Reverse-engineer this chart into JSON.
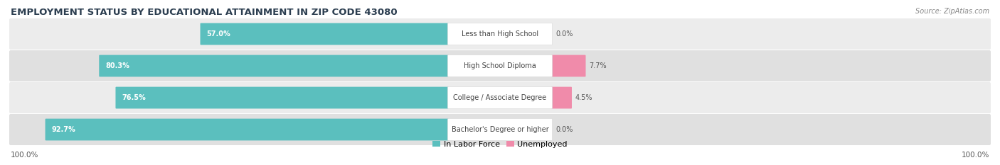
{
  "title": "EMPLOYMENT STATUS BY EDUCATIONAL ATTAINMENT IN ZIP CODE 43080",
  "source": "Source: ZipAtlas.com",
  "categories": [
    "Less than High School",
    "High School Diploma",
    "College / Associate Degree",
    "Bachelor's Degree or higher"
  ],
  "labor_force": [
    57.0,
    80.3,
    76.5,
    92.7
  ],
  "unemployed": [
    0.0,
    7.7,
    4.5,
    0.0
  ],
  "labor_force_color": "#5BBFBE",
  "unemployed_color": "#F08BAA",
  "row_bg_light": "#ECECEC",
  "row_bg_dark": "#E0E0E0",
  "max_value": 100.0,
  "left_label": "100.0%",
  "right_label": "100.0%",
  "legend_labor": "In Labor Force",
  "legend_unemployed": "Unemployed",
  "title_fontsize": 9.5,
  "source_fontsize": 7,
  "bar_label_fontsize": 7,
  "category_fontsize": 7,
  "legend_fontsize": 8,
  "axis_label_fontsize": 7.5,
  "background_color": "#FFFFFF"
}
